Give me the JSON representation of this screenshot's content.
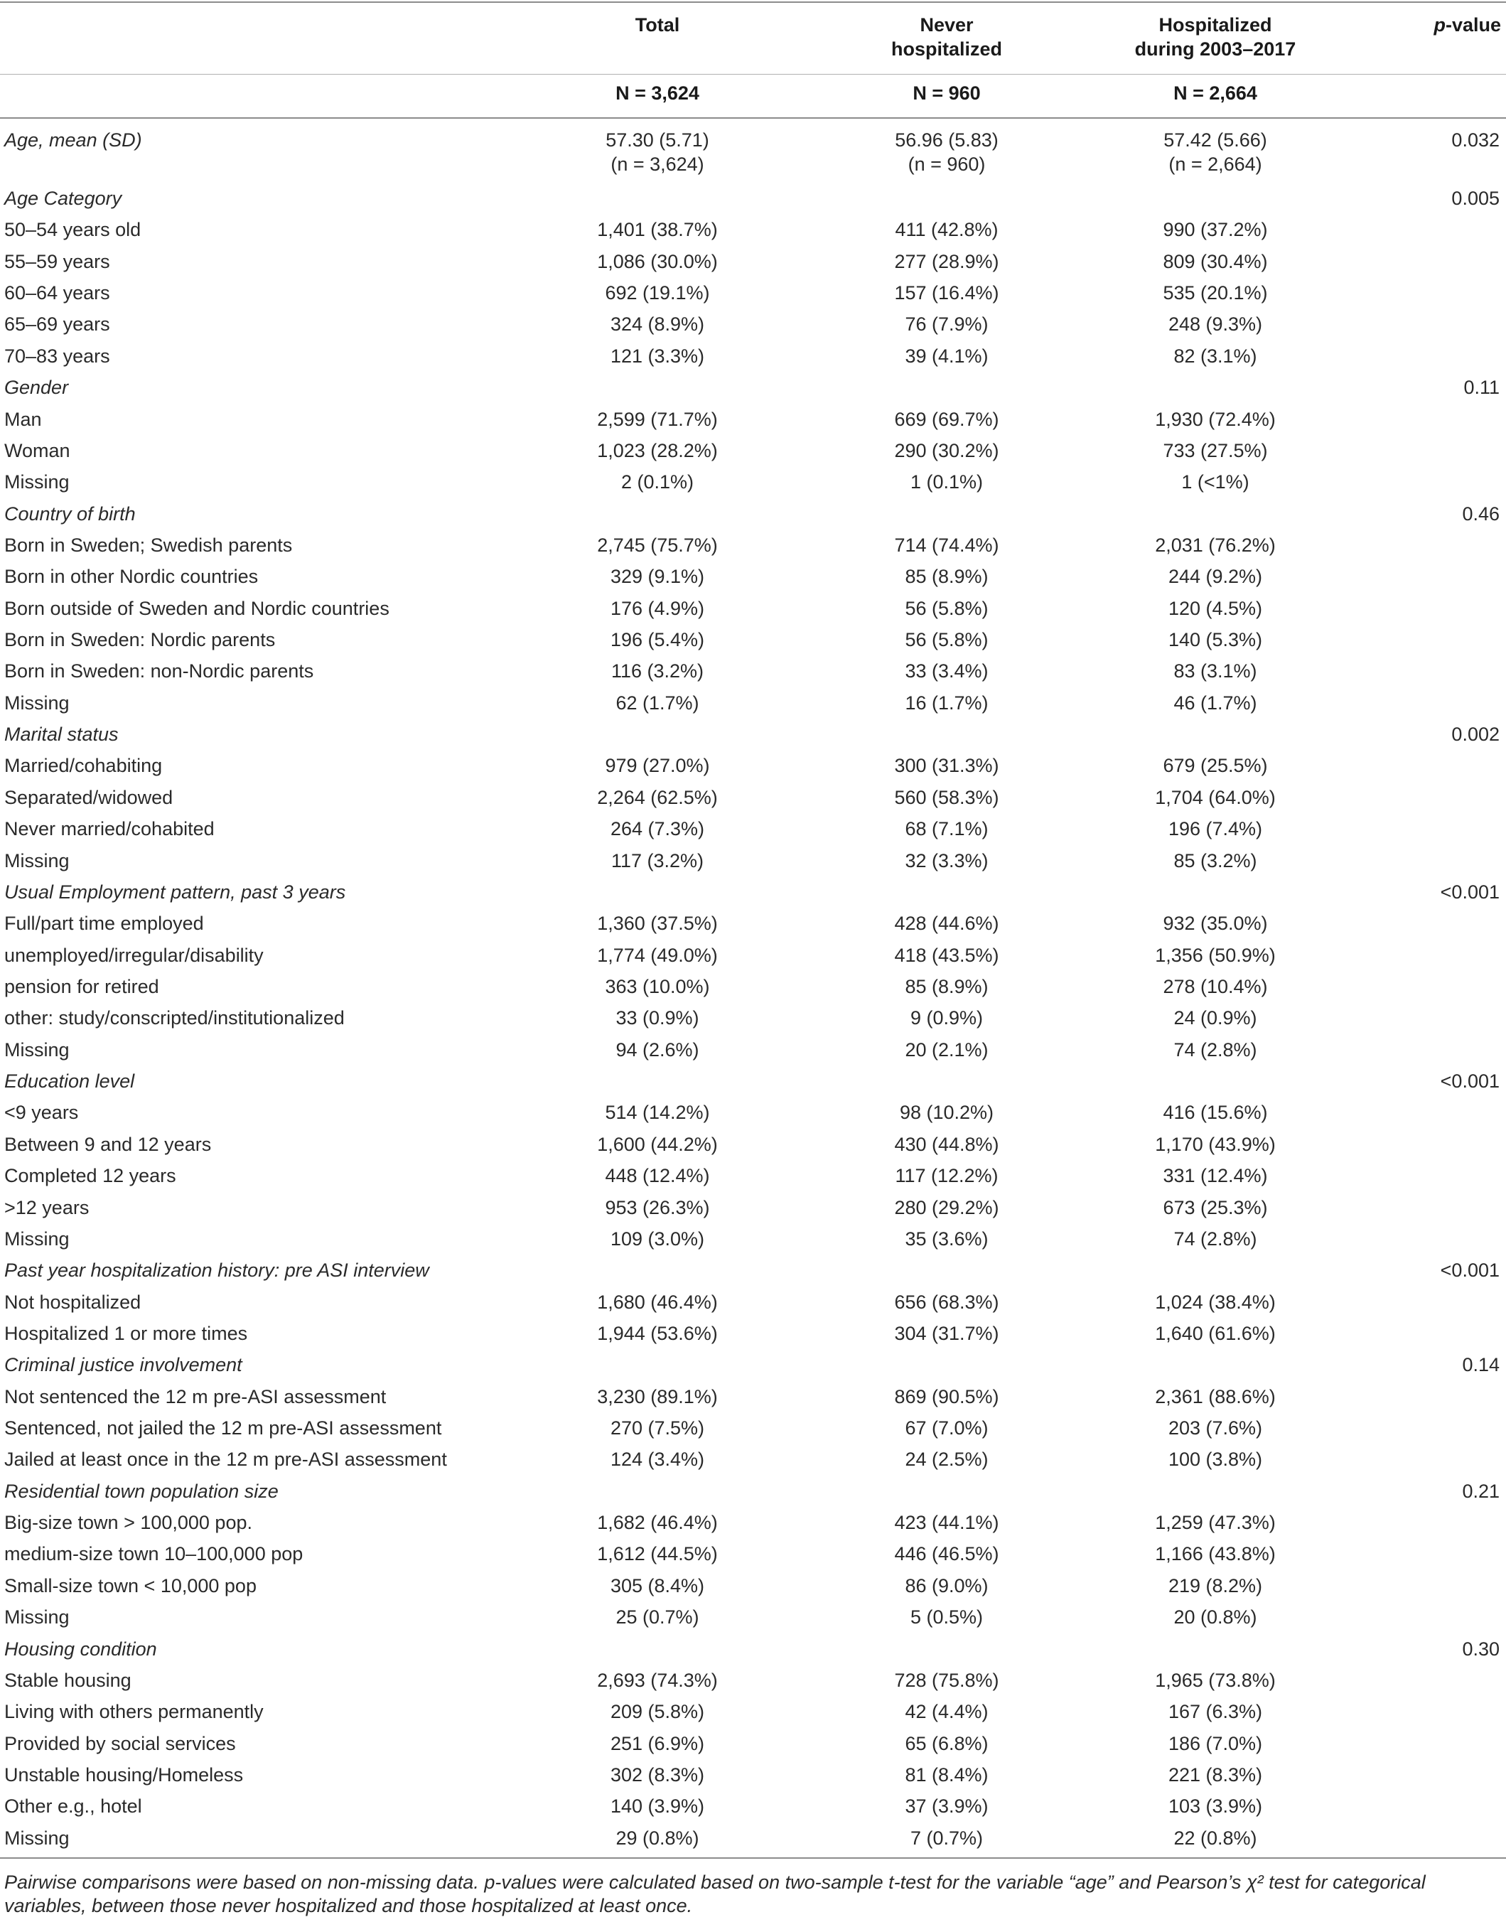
{
  "header": {
    "total": "Total",
    "never_line1": "Never",
    "never_line2": "hospitalized",
    "hosp_line1": "Hospitalized",
    "hosp_line2": "during 2003–2017",
    "pvalue_p": "p",
    "pvalue_rest": "-value",
    "n_total": "N = 3,624",
    "n_never": "N = 960",
    "n_hosp": "N = 2,664"
  },
  "age_row": {
    "label": "Age, mean (SD)",
    "total": "57.30 (5.71)",
    "total_n": "(n = 3,624)",
    "never": "56.96 (5.83)",
    "never_n": "(n = 960)",
    "hosp": "57.42 (5.66)",
    "hosp_n": "(n = 2,664)",
    "p": "0.032"
  },
  "rows": [
    {
      "label": "Age Category",
      "total": "",
      "never": "",
      "hosp": "",
      "p": "0.005",
      "cat": true
    },
    {
      "label": "50–54 years old",
      "total": "1,401 (38.7%)",
      "never": "411 (42.8%)",
      "hosp": "990 (37.2%)",
      "p": ""
    },
    {
      "label": "55–59 years",
      "total": "1,086 (30.0%)",
      "never": "277 (28.9%)",
      "hosp": "809 (30.4%)",
      "p": ""
    },
    {
      "label": "60–64 years",
      "total": "692 (19.1%)",
      "never": "157 (16.4%)",
      "hosp": "535 (20.1%)",
      "p": ""
    },
    {
      "label": "65–69 years",
      "total": "324 (8.9%)",
      "never": "76 (7.9%)",
      "hosp": "248 (9.3%)",
      "p": ""
    },
    {
      "label": "70–83 years",
      "total": "121 (3.3%)",
      "never": "39 (4.1%)",
      "hosp": "82 (3.1%)",
      "p": ""
    },
    {
      "label": "Gender",
      "total": "",
      "never": "",
      "hosp": "",
      "p": "0.11",
      "cat": true
    },
    {
      "label": "Man",
      "total": "2,599 (71.7%)",
      "never": "669 (69.7%)",
      "hosp": "1,930 (72.4%)",
      "p": ""
    },
    {
      "label": "Woman",
      "total": "1,023 (28.2%)",
      "never": "290 (30.2%)",
      "hosp": "733 (27.5%)",
      "p": ""
    },
    {
      "label": "Missing",
      "total": "2 (0.1%)",
      "never": "1 (0.1%)",
      "hosp": "1 (<1%)",
      "p": ""
    },
    {
      "label": "Country of birth",
      "total": "",
      "never": "",
      "hosp": "",
      "p": "0.46",
      "cat": true
    },
    {
      "label": "Born in Sweden; Swedish parents",
      "total": "2,745 (75.7%)",
      "never": "714 (74.4%)",
      "hosp": "2,031 (76.2%)",
      "p": ""
    },
    {
      "label": "Born in other Nordic countries",
      "total": "329 (9.1%)",
      "never": "85 (8.9%)",
      "hosp": "244 (9.2%)",
      "p": ""
    },
    {
      "label": "Born outside of Sweden and Nordic countries",
      "total": "176 (4.9%)",
      "never": "56 (5.8%)",
      "hosp": "120 (4.5%)",
      "p": ""
    },
    {
      "label": "Born in Sweden: Nordic parents",
      "total": "196 (5.4%)",
      "never": "56 (5.8%)",
      "hosp": "140 (5.3%)",
      "p": ""
    },
    {
      "label": "Born in Sweden: non-Nordic parents",
      "total": "116 (3.2%)",
      "never": "33 (3.4%)",
      "hosp": "83 (3.1%)",
      "p": ""
    },
    {
      "label": "Missing",
      "total": "62 (1.7%)",
      "never": "16 (1.7%)",
      "hosp": "46 (1.7%)",
      "p": ""
    },
    {
      "label": "Marital status",
      "total": "",
      "never": "",
      "hosp": "",
      "p": "0.002",
      "cat": true
    },
    {
      "label": "Married/cohabiting",
      "total": "979 (27.0%)",
      "never": "300 (31.3%)",
      "hosp": "679 (25.5%)",
      "p": ""
    },
    {
      "label": "Separated/widowed",
      "total": "2,264 (62.5%)",
      "never": "560 (58.3%)",
      "hosp": "1,704 (64.0%)",
      "p": ""
    },
    {
      "label": "Never married/cohabited",
      "total": "264 (7.3%)",
      "never": "68 (7.1%)",
      "hosp": "196 (7.4%)",
      "p": ""
    },
    {
      "label": "Missing",
      "total": "117 (3.2%)",
      "never": "32 (3.3%)",
      "hosp": "85 (3.2%)",
      "p": ""
    },
    {
      "label": "Usual Employment pattern, past 3 years",
      "total": "",
      "never": "",
      "hosp": "",
      "p": "<0.001",
      "cat": true
    },
    {
      "label": "Full/part time employed",
      "total": "1,360 (37.5%)",
      "never": "428 (44.6%)",
      "hosp": "932 (35.0%)",
      "p": ""
    },
    {
      "label": "unemployed/irregular/disability",
      "total": "1,774 (49.0%)",
      "never": "418 (43.5%)",
      "hosp": "1,356 (50.9%)",
      "p": ""
    },
    {
      "label": "pension for retired",
      "total": "363 (10.0%)",
      "never": "85 (8.9%)",
      "hosp": "278 (10.4%)",
      "p": ""
    },
    {
      "label": "other: study/conscripted/institutionalized",
      "total": "33 (0.9%)",
      "never": "9 (0.9%)",
      "hosp": "24 (0.9%)",
      "p": ""
    },
    {
      "label": "Missing",
      "total": "94 (2.6%)",
      "never": "20 (2.1%)",
      "hosp": "74 (2.8%)",
      "p": ""
    },
    {
      "label": "Education level",
      "total": "",
      "never": "",
      "hosp": "",
      "p": "<0.001",
      "cat": true
    },
    {
      "label": "<9 years",
      "total": "514 (14.2%)",
      "never": "98 (10.2%)",
      "hosp": "416 (15.6%)",
      "p": ""
    },
    {
      "label": "Between 9 and 12 years",
      "total": "1,600 (44.2%)",
      "never": "430 (44.8%)",
      "hosp": "1,170 (43.9%)",
      "p": ""
    },
    {
      "label": "Completed 12 years",
      "total": "448 (12.4%)",
      "never": "117 (12.2%)",
      "hosp": "331 (12.4%)",
      "p": ""
    },
    {
      "label": ">12 years",
      "total": "953 (26.3%)",
      "never": "280 (29.2%)",
      "hosp": "673 (25.3%)",
      "p": ""
    },
    {
      "label": "Missing",
      "total": "109 (3.0%)",
      "never": "35 (3.6%)",
      "hosp": "74 (2.8%)",
      "p": ""
    },
    {
      "label": "Past year hospitalization history: pre ASI interview",
      "total": "",
      "never": "",
      "hosp": "",
      "p": "<0.001",
      "cat": true
    },
    {
      "label": "Not hospitalized",
      "total": "1,680 (46.4%)",
      "never": "656 (68.3%)",
      "hosp": "1,024 (38.4%)",
      "p": ""
    },
    {
      "label": "Hospitalized 1 or more times",
      "total": "1,944 (53.6%)",
      "never": "304 (31.7%)",
      "hosp": "1,640 (61.6%)",
      "p": ""
    },
    {
      "label": "Criminal justice involvement",
      "total": "",
      "never": "",
      "hosp": "",
      "p": "0.14",
      "cat": true
    },
    {
      "label": "Not sentenced the 12 m pre-ASI assessment",
      "total": "3,230 (89.1%)",
      "never": "869 (90.5%)",
      "hosp": "2,361 (88.6%)",
      "p": ""
    },
    {
      "label": "Sentenced, not jailed the 12 m pre-ASI assessment",
      "total": "270 (7.5%)",
      "never": "67 (7.0%)",
      "hosp": "203 (7.6%)",
      "p": ""
    },
    {
      "label": "Jailed at least once in the 12 m pre-ASI assessment",
      "total": "124 (3.4%)",
      "never": "24 (2.5%)",
      "hosp": "100 (3.8%)",
      "p": ""
    },
    {
      "label": "Residential town population size",
      "total": "",
      "never": "",
      "hosp": "",
      "p": "0.21",
      "cat": true
    },
    {
      "label": "Big-size town > 100,000 pop.",
      "total": "1,682 (46.4%)",
      "never": "423 (44.1%)",
      "hosp": "1,259 (47.3%)",
      "p": ""
    },
    {
      "label": "medium-size town 10–100,000 pop",
      "total": "1,612 (44.5%)",
      "never": "446 (46.5%)",
      "hosp": "1,166 (43.8%)",
      "p": ""
    },
    {
      "label": "Small-size town < 10,000 pop",
      "total": "305 (8.4%)",
      "never": "86 (9.0%)",
      "hosp": "219 (8.2%)",
      "p": ""
    },
    {
      "label": "Missing",
      "total": "25 (0.7%)",
      "never": "5 (0.5%)",
      "hosp": "20 (0.8%)",
      "p": ""
    },
    {
      "label": "Housing condition",
      "total": "",
      "never": "",
      "hosp": "",
      "p": "0.30",
      "cat": true
    },
    {
      "label": "Stable housing",
      "total": "2,693 (74.3%)",
      "never": "728 (75.8%)",
      "hosp": "1,965 (73.8%)",
      "p": ""
    },
    {
      "label": "Living with others permanently",
      "total": "209 (5.8%)",
      "never": "42 (4.4%)",
      "hosp": "167 (6.3%)",
      "p": ""
    },
    {
      "label": "Provided by social services",
      "total": "251 (6.9%)",
      "never": "65 (6.8%)",
      "hosp": "186 (7.0%)",
      "p": ""
    },
    {
      "label": "Unstable housing/Homeless",
      "total": "302 (8.3%)",
      "never": "81 (8.4%)",
      "hosp": "221 (8.3%)",
      "p": ""
    },
    {
      "label": "Other e.g., hotel",
      "total": "140 (3.9%)",
      "never": "37 (3.9%)",
      "hosp": "103 (3.9%)",
      "p": ""
    },
    {
      "label": "Missing",
      "total": "29 (0.8%)",
      "never": "7 (0.7%)",
      "hosp": "22 (0.8%)",
      "p": ""
    }
  ],
  "footnote": "Pairwise comparisons were based on non-missing data. p-values were calculated based on two-sample t-test for the variable “age” and Pearson’s χ² test for categorical variables, between those never hospitalized and those hospitalized at least once."
}
